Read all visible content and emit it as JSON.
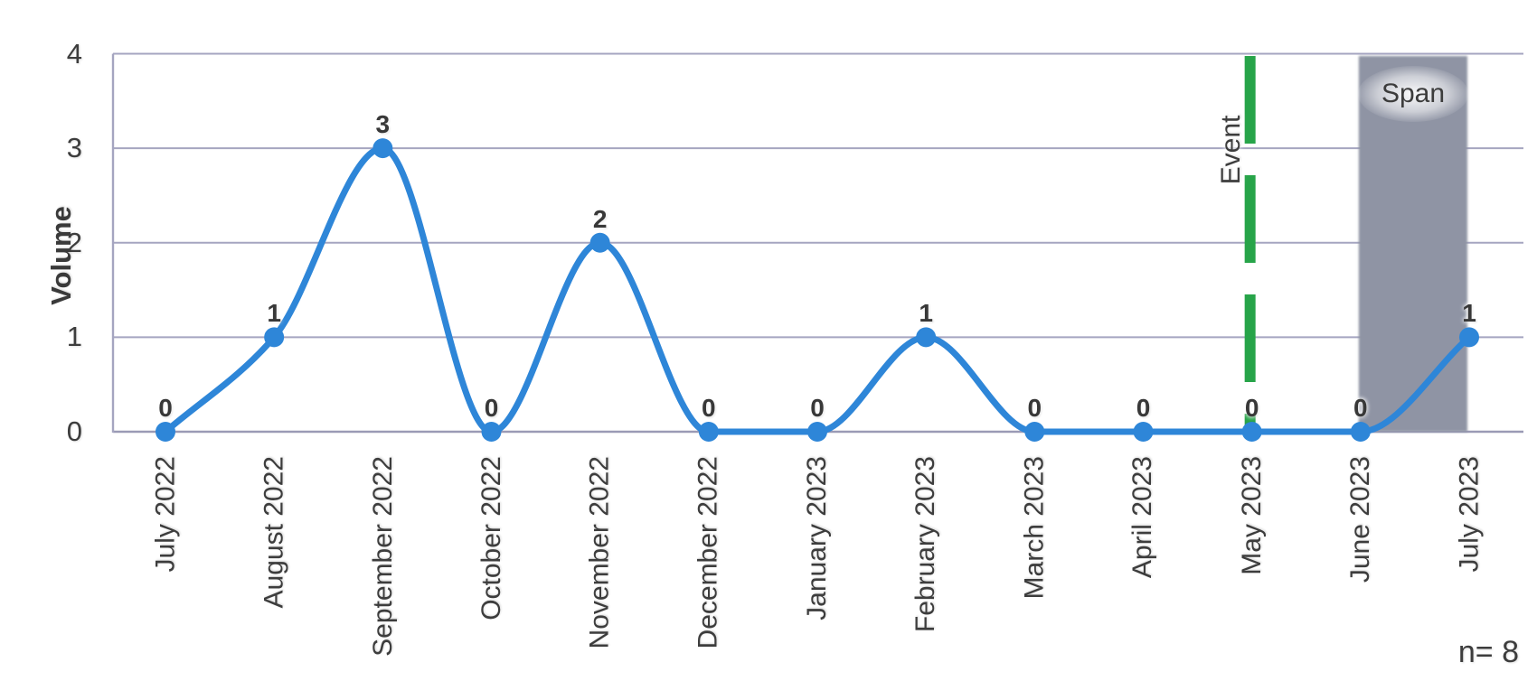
{
  "chart_data": {
    "type": "line",
    "title": "",
    "xlabel": "",
    "ylabel": "Volume",
    "categories": [
      "July 2022",
      "August 2022",
      "September 2022",
      "October 2022",
      "November 2022",
      "December 2022",
      "January 2023",
      "February 2023",
      "March 2023",
      "April 2023",
      "May 2023",
      "June 2023",
      "July 2023"
    ],
    "series": [
      {
        "name": "Volume",
        "values": [
          0,
          1,
          3,
          0,
          2,
          0,
          0,
          1,
          0,
          0,
          0,
          0,
          1
        ]
      }
    ],
    "ylim": [
      0,
      4
    ],
    "yticks": [
      0,
      1,
      2,
      3,
      4
    ],
    "grid": true,
    "smooth": true,
    "marker": "circle",
    "data_labels": [
      0,
      1,
      3,
      0,
      2,
      0,
      0,
      1,
      0,
      0,
      0,
      0,
      1
    ],
    "legend": "none",
    "annotations": {
      "event_line": {
        "label": "Event",
        "category": "May 2023",
        "style": "dashed-vertical"
      },
      "span_region": {
        "label": "Span",
        "from_category": "June 2023",
        "to_category": "July 2023"
      }
    },
    "footnote": "n= 8"
  },
  "colors": {
    "series_line": "#2e86d8",
    "marker": "#2e86d8",
    "event_line_green": "#27a449",
    "span_gray": "#8f94a4",
    "gridline": "#a5a5c0",
    "axis_line": "#9a9ab5",
    "text": "#3c3c3c",
    "background": "#ffffff"
  }
}
